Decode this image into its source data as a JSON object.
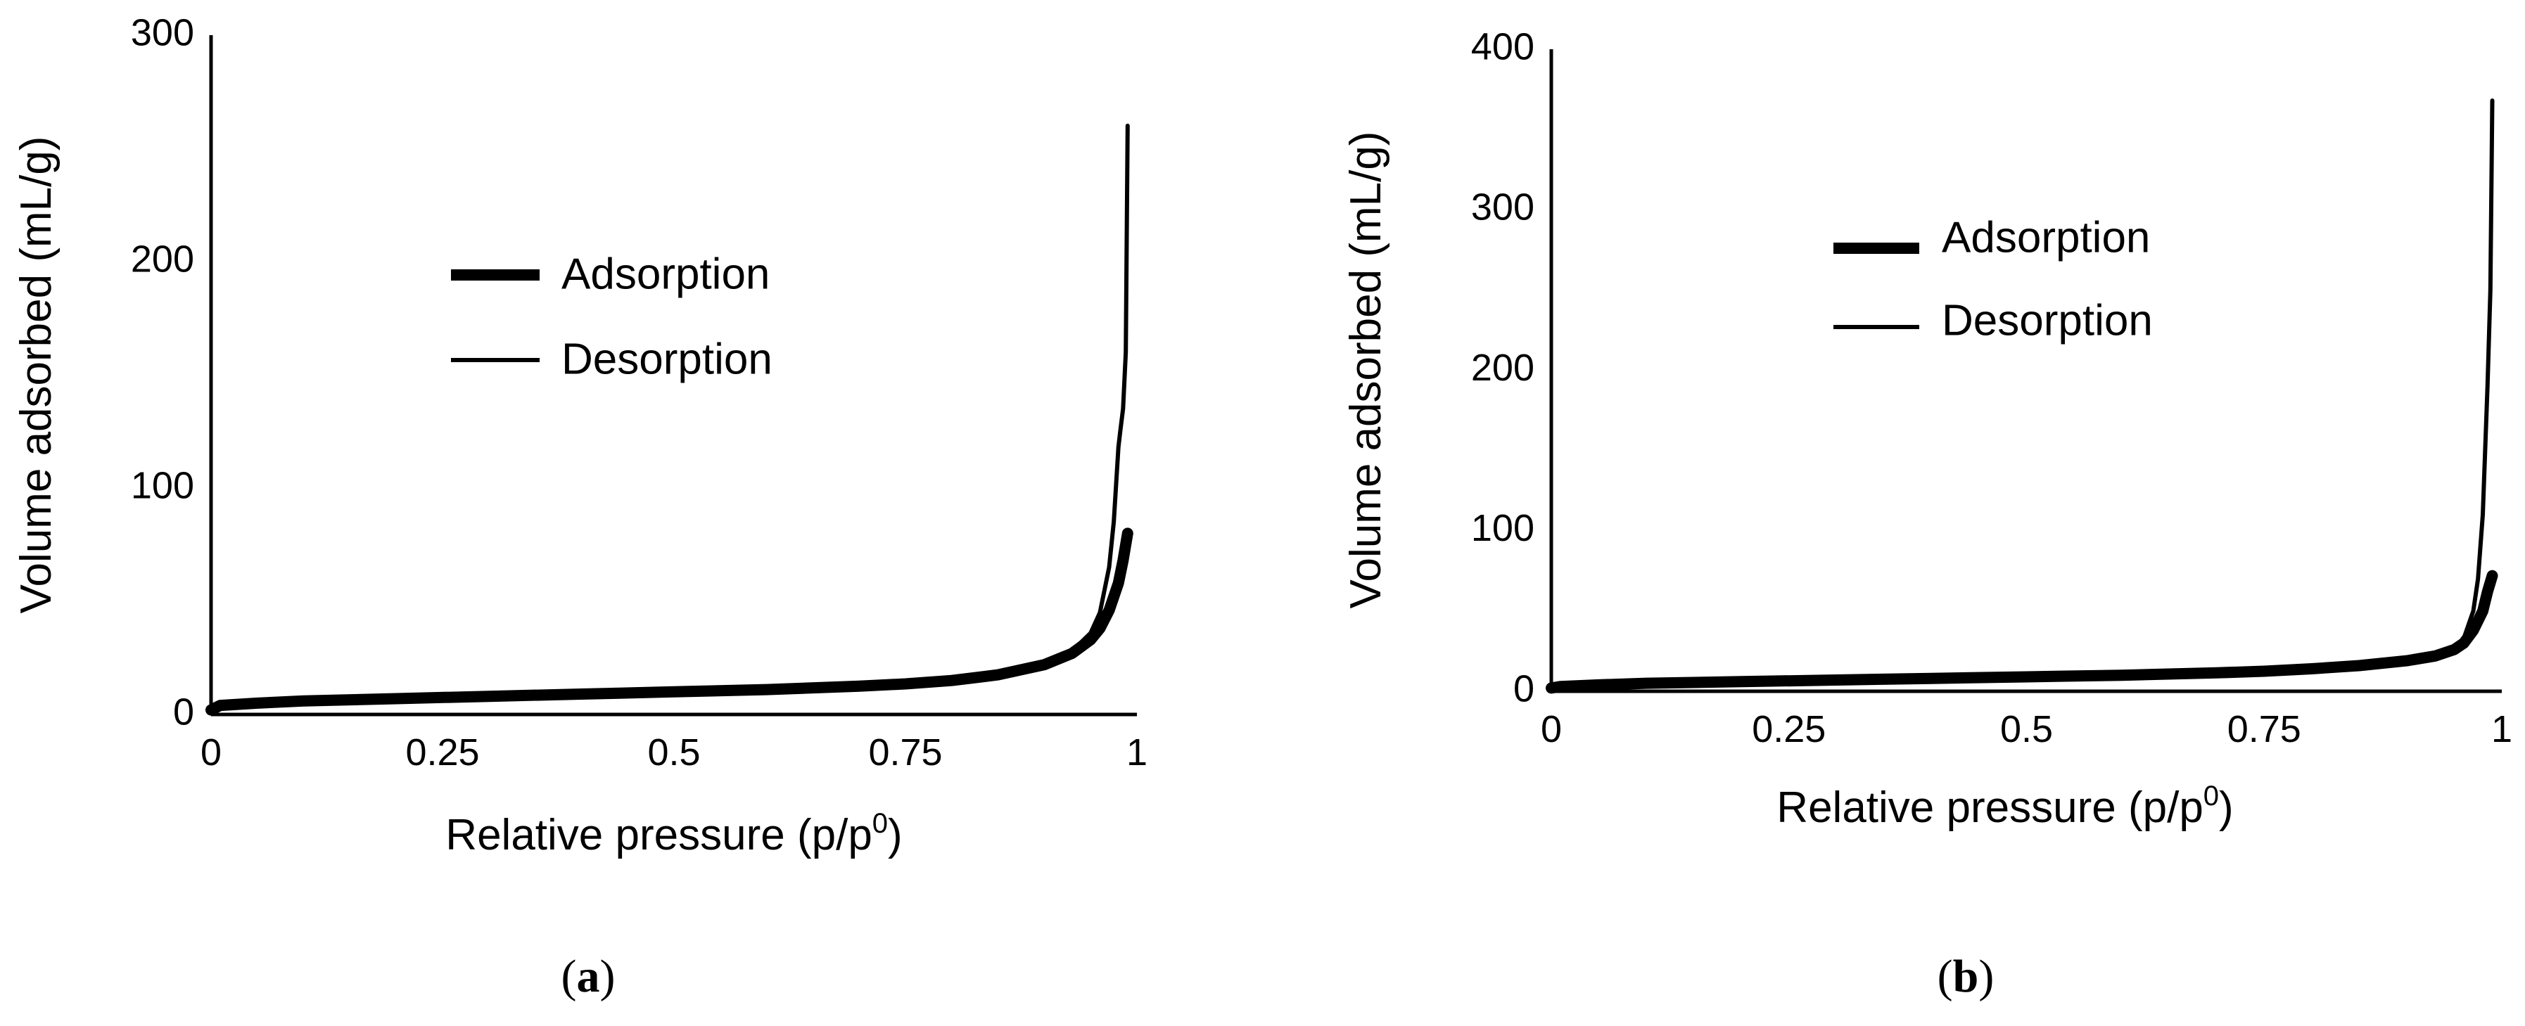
{
  "chart_data": [
    {
      "type": "line",
      "panel_label": "a",
      "title": "",
      "xlabel": "Relative pressure (p/p",
      "xlabel_sup": "0",
      "xlabel_tail": ")",
      "ylabel": "Volume adsorbed (mL/g)",
      "xlim": [
        0,
        1
      ],
      "ylim": [
        0,
        300
      ],
      "xticks": [
        "0",
        "0.25",
        "0.5",
        "0.75",
        "1"
      ],
      "xtick_values": [
        0,
        0.25,
        0.5,
        0.75,
        1
      ],
      "yticks": [
        "0",
        "100",
        "200",
        "300"
      ],
      "ytick_values": [
        0,
        100,
        200,
        300
      ],
      "legend_position": "center-left",
      "series": [
        {
          "name": "Adsorption",
          "style": "thick",
          "x": [
            0.0,
            0.01,
            0.05,
            0.1,
            0.2,
            0.3,
            0.4,
            0.5,
            0.6,
            0.7,
            0.75,
            0.8,
            0.85,
            0.9,
            0.93,
            0.95,
            0.96,
            0.97,
            0.98,
            0.985,
            0.99
          ],
          "y": [
            2,
            4,
            5,
            6,
            7,
            8,
            9,
            10,
            11,
            12.5,
            13.5,
            15,
            17.5,
            22,
            27,
            33,
            38,
            46,
            58,
            68,
            80
          ]
        },
        {
          "name": "Desorption",
          "style": "thin",
          "x": [
            0.99,
            0.988,
            0.985,
            0.982,
            0.98,
            0.975,
            0.97,
            0.96,
            0.95,
            0.93,
            0.9,
            0.85,
            0.8,
            0.75,
            0.7,
            0.6,
            0.5,
            0.4,
            0.3,
            0.2,
            0.1,
            0.05,
            0.01
          ],
          "y": [
            260,
            160,
            135,
            125,
            118,
            85,
            65,
            45,
            36,
            28,
            23,
            18,
            15.5,
            14,
            12.8,
            11.3,
            10.2,
            9.2,
            8.2,
            7.2,
            6.2,
            5.2,
            4.5
          ]
        }
      ]
    },
    {
      "type": "line",
      "panel_label": "b",
      "title": "",
      "xlabel": "Relative pressure (p/p",
      "xlabel_sup": "0",
      "xlabel_tail": ")",
      "ylabel": "Volume adsorbed (mL/g)",
      "xlim": [
        0,
        1
      ],
      "ylim": [
        0,
        400
      ],
      "xticks": [
        "0",
        "0.25",
        "0.5",
        "0.75",
        "1"
      ],
      "xtick_values": [
        0,
        0.25,
        0.5,
        0.75,
        1
      ],
      "yticks": [
        "0",
        "100",
        "200",
        "300",
        "400"
      ],
      "ytick_values": [
        0,
        100,
        200,
        300,
        400
      ],
      "legend_position": "top-center",
      "series": [
        {
          "name": "Adsorption",
          "style": "thick",
          "x": [
            0.0,
            0.01,
            0.05,
            0.1,
            0.2,
            0.3,
            0.4,
            0.5,
            0.6,
            0.7,
            0.75,
            0.8,
            0.85,
            0.9,
            0.93,
            0.95,
            0.96,
            0.97,
            0.98,
            0.985,
            0.99
          ],
          "y": [
            2,
            3,
            4,
            5,
            6,
            7,
            8,
            9,
            10,
            11.5,
            12.5,
            14,
            16,
            19,
            22,
            26,
            30,
            38,
            50,
            62,
            72
          ]
        },
        {
          "name": "Desorption",
          "style": "thin",
          "x": [
            0.99,
            0.988,
            0.985,
            0.98,
            0.975,
            0.97,
            0.96,
            0.95,
            0.93,
            0.9,
            0.85,
            0.8,
            0.75,
            0.7,
            0.6,
            0.5,
            0.4,
            0.3,
            0.2,
            0.1,
            0.05,
            0.01
          ],
          "y": [
            368,
            250,
            190,
            110,
            70,
            50,
            33,
            27,
            22,
            19,
            16,
            14,
            12.8,
            11.6,
            10.2,
            9.0,
            8.0,
            7.0,
            6.0,
            5.0,
            4.2,
            3.8
          ]
        }
      ]
    }
  ]
}
